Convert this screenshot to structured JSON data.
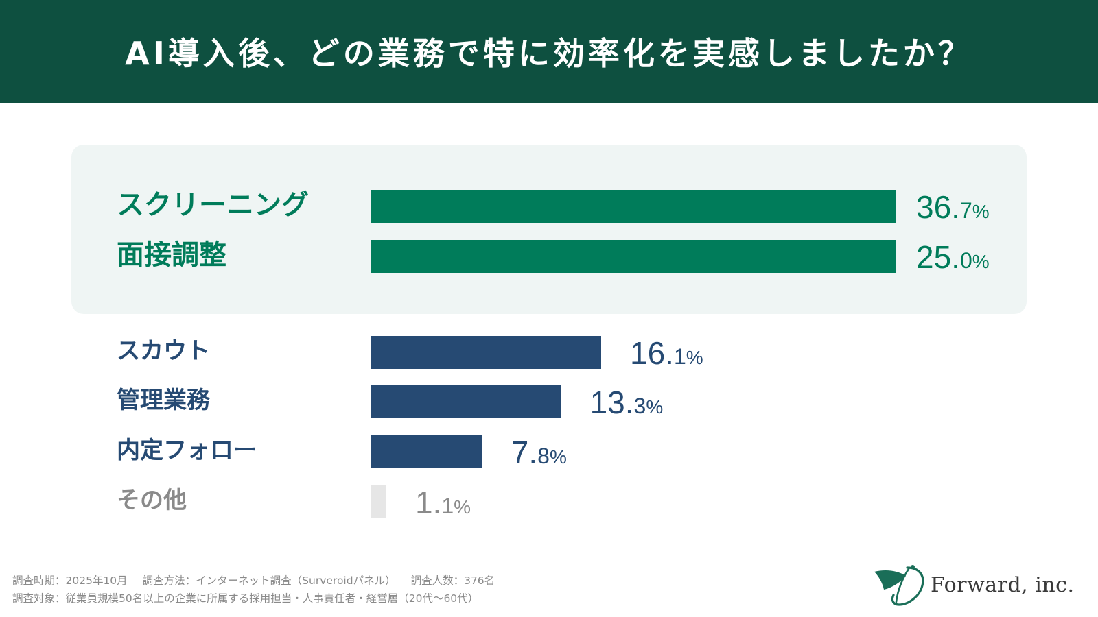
{
  "header": {
    "title": "AI導入後、どの業務で特に効率化を実感しましたか？"
  },
  "chart_data": {
    "type": "bar",
    "orientation": "horizontal",
    "title": "AI導入後、どの業務で特に効率化を実感しましたか？",
    "unit": "%",
    "categories": [
      "スクリーニング",
      "面接調整",
      "スカウト",
      "管理業務",
      "内定フォロー",
      "その他"
    ],
    "values": [
      36.7,
      25.0,
      16.1,
      13.3,
      7.8,
      1.1
    ],
    "value_labels": [
      {
        "num": "36.",
        "dec": "7",
        "unit": "%"
      },
      {
        "num": "25.",
        "dec": "0",
        "unit": "%"
      },
      {
        "num": "16.",
        "dec": "1",
        "unit": "%"
      },
      {
        "num": "13.",
        "dec": "3",
        "unit": "%"
      },
      {
        "num": "7.",
        "dec": "8",
        "unit": "%"
      },
      {
        "num": "1.",
        "dec": "1",
        "unit": "%"
      }
    ],
    "highlighted": [
      true,
      true,
      false,
      false,
      false,
      false
    ],
    "bar_colors": [
      "#007c5a",
      "#007c5a",
      "#264a73",
      "#264a73",
      "#264a73",
      "#e6e6e6"
    ],
    "label_colors": [
      "#007c5a",
      "#007c5a",
      "#264a73",
      "#264a73",
      "#264a73",
      "#8a8a8a"
    ],
    "legend": "none",
    "grid": false
  },
  "footer": {
    "line1_a": "調査時期：2025年10月",
    "line1_b": "調査方法：インターネット調査（Surveroidパネル）",
    "line1_c": "調査人数：376名",
    "line2": "調査対象：従業員規模50名以上の企業に所属する採用担当・人事責任者・経営層（20代〜60代）"
  },
  "logo": {
    "text": "Forward, inc.",
    "mark_icon": "forward-leaf-icon",
    "mark_color": "#1a6e58"
  },
  "colors": {
    "header_bg": "#0e5040",
    "panel_bg": "#eff5f4"
  }
}
